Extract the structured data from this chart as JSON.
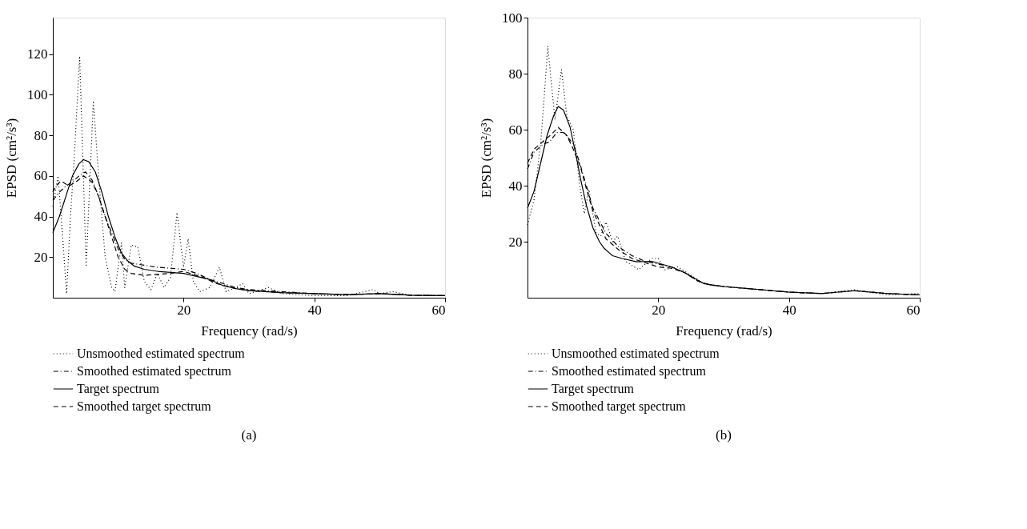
{
  "chart_data": [
    {
      "type": "line",
      "xlabel": "Frequency (rad/s)",
      "ylabel": "EPSD (cm²/s³)",
      "xlim": [
        0,
        60
      ],
      "xticks": [
        20,
        40,
        60
      ],
      "ylim": [
        0,
        138
      ],
      "yticks": [
        20,
        40,
        60,
        80,
        100,
        120
      ],
      "grid": false,
      "legend": "bottom",
      "marker": "none",
      "annotations": [
        "(a)"
      ],
      "series": [
        {
          "name": "Unsmoothed estimated spectrum",
          "color": "#000000",
          "line_style": "dotted",
          "x": [
            0,
            0.8,
            1.5,
            2.1,
            2.7,
            3.3,
            4.1,
            5.1,
            6.2,
            7,
            8,
            9,
            9.5,
            10.5,
            11,
            12,
            13,
            14,
            15,
            16,
            17,
            18,
            19,
            20,
            20.7,
            21.5,
            22.5,
            24,
            25.5,
            26.5,
            28,
            29,
            30,
            33,
            35,
            40,
            45,
            49,
            50,
            52,
            55,
            60
          ],
          "values": [
            45,
            60,
            30,
            2,
            40,
            70,
            119,
            16,
            97,
            60,
            20,
            5,
            3,
            27,
            5,
            26,
            25,
            8,
            4,
            12,
            5,
            10,
            42,
            15,
            29,
            8,
            3,
            5,
            15,
            3,
            5,
            7,
            2,
            5,
            2,
            1,
            1,
            4,
            2,
            3,
            1,
            1
          ]
        },
        {
          "name": "Smoothed estimated spectrum",
          "color": "#000000",
          "line_style": "dashdot",
          "x": [
            0,
            1,
            2,
            3,
            4,
            5,
            6,
            7,
            8,
            9,
            10,
            11,
            12,
            14,
            16,
            18,
            20,
            22,
            24,
            26,
            28,
            30,
            35,
            40,
            45,
            50,
            55,
            60
          ],
          "values": [
            48,
            52,
            55,
            57,
            60,
            62,
            58,
            50,
            40,
            32,
            24,
            19,
            17,
            16,
            15,
            14.5,
            14,
            12,
            9,
            7,
            5,
            4,
            3,
            2,
            1.5,
            2,
            1.2,
            1
          ]
        },
        {
          "name": "Target spectrum",
          "color": "#000000",
          "line_style": "solid",
          "x": [
            0,
            1,
            2,
            3,
            4,
            4.7,
            5.5,
            6.5,
            7.5,
            8.5,
            9.5,
            10.5,
            11.5,
            12.5,
            14,
            16,
            18,
            20,
            22,
            24,
            26,
            28,
            30,
            35,
            40,
            45,
            50,
            55,
            60
          ],
          "values": [
            32,
            40,
            50,
            60,
            66,
            68,
            67,
            62,
            52,
            40,
            30,
            22,
            18,
            15.5,
            14,
            13,
            12.5,
            12,
            10.5,
            9,
            6,
            4.5,
            3.5,
            2.5,
            2,
            1.5,
            2,
            1.2,
            1
          ]
        },
        {
          "name": "Smoothed target spectrum",
          "color": "#000000",
          "line_style": "dashed",
          "x": [
            0,
            0.5,
            1.2,
            2,
            2.5,
            3.5,
            4.7,
            6,
            7,
            8,
            9,
            10,
            11,
            12,
            14,
            16,
            18,
            20,
            22,
            23,
            25,
            28,
            30,
            35,
            40,
            45,
            50,
            55,
            60
          ],
          "values": [
            52,
            55,
            57.5,
            56,
            55,
            57,
            60,
            57,
            50,
            40,
            30,
            20,
            14,
            12,
            11,
            11.5,
            12,
            13,
            11,
            10,
            7,
            4.5,
            3.5,
            2.5,
            2,
            1.5,
            2,
            1.2,
            1
          ]
        }
      ]
    },
    {
      "type": "line",
      "xlabel": "Frequency (rad/s)",
      "ylabel": "EPSD (cm²/s³)",
      "xlim": [
        0,
        60
      ],
      "xticks": [
        20,
        40,
        60
      ],
      "ylim": [
        0,
        100
      ],
      "yticks": [
        20,
        40,
        60,
        80,
        100
      ],
      "grid": false,
      "legend": "bottom",
      "marker": "none",
      "annotations": [
        "(b)"
      ],
      "series": [
        {
          "name": "Unsmoothed estimated spectrum",
          "color": "#000000",
          "line_style": "dotted",
          "x": [
            0,
            1,
            2,
            2.5,
            3.1,
            4.2,
            5.2,
            6,
            7,
            8,
            8.7,
            9.4,
            10.5,
            11.2,
            12,
            13,
            13.8,
            15,
            17,
            19,
            20,
            21,
            23,
            25,
            27,
            30,
            35,
            40,
            45,
            50,
            55,
            60
          ],
          "values": [
            26,
            35,
            55,
            70,
            89.8,
            63.6,
            81.4,
            65,
            60,
            40,
            30,
            38.6,
            23,
            22,
            27,
            20,
            22,
            13,
            10,
            14,
            14,
            10,
            11,
            8,
            5,
            4,
            3,
            2,
            1.5,
            2.8,
            1,
            1.5
          ]
        },
        {
          "name": "Smoothed estimated spectrum",
          "color": "#000000",
          "line_style": "dashdot",
          "x": [
            0,
            1,
            2.5,
            3.3,
            4.5,
            5.5,
            7,
            8,
            9,
            10,
            12,
            14,
            16,
            18,
            20,
            22,
            24,
            26,
            28,
            30,
            35,
            40,
            45,
            50,
            55,
            60
          ],
          "values": [
            46,
            52,
            55,
            55.5,
            59,
            59,
            55,
            48,
            40,
            32,
            23,
            18,
            15,
            13,
            12,
            11,
            9,
            6,
            4.5,
            4,
            3,
            2,
            1.5,
            2.5,
            1.5,
            1
          ]
        },
        {
          "name": "Target spectrum",
          "color": "#000000",
          "line_style": "solid",
          "x": [
            0,
            1,
            2,
            3,
            4,
            4.7,
            5.5,
            6.5,
            7.5,
            8.1,
            9,
            10,
            11,
            11.7,
            13,
            14.5,
            16.7,
            19,
            22,
            24,
            27,
            30,
            35,
            40,
            45,
            50,
            55,
            60
          ],
          "values": [
            32,
            38,
            48,
            58,
            65,
            68.3,
            67,
            61,
            50,
            42.6,
            33,
            25,
            20,
            17.7,
            15,
            14,
            12.8,
            13,
            11,
            9,
            5,
            4,
            3,
            2,
            1.5,
            2.5,
            1.5,
            1
          ]
        },
        {
          "name": "Smoothed target spectrum",
          "color": "#000000",
          "line_style": "dashed",
          "x": [
            0,
            1,
            2.5,
            3.5,
            4.7,
            6,
            7,
            8.1,
            9,
            10,
            12,
            14,
            16,
            18,
            20,
            22,
            24,
            26,
            28,
            30,
            35,
            40,
            45,
            50,
            55,
            60
          ],
          "values": [
            48,
            53,
            56,
            58,
            60.8,
            58,
            53,
            46.7,
            39,
            31,
            21,
            17,
            14,
            12.5,
            11,
            10.5,
            9,
            6,
            4.5,
            4,
            3,
            2,
            1.5,
            2.5,
            1.5,
            1
          ]
        }
      ]
    }
  ]
}
